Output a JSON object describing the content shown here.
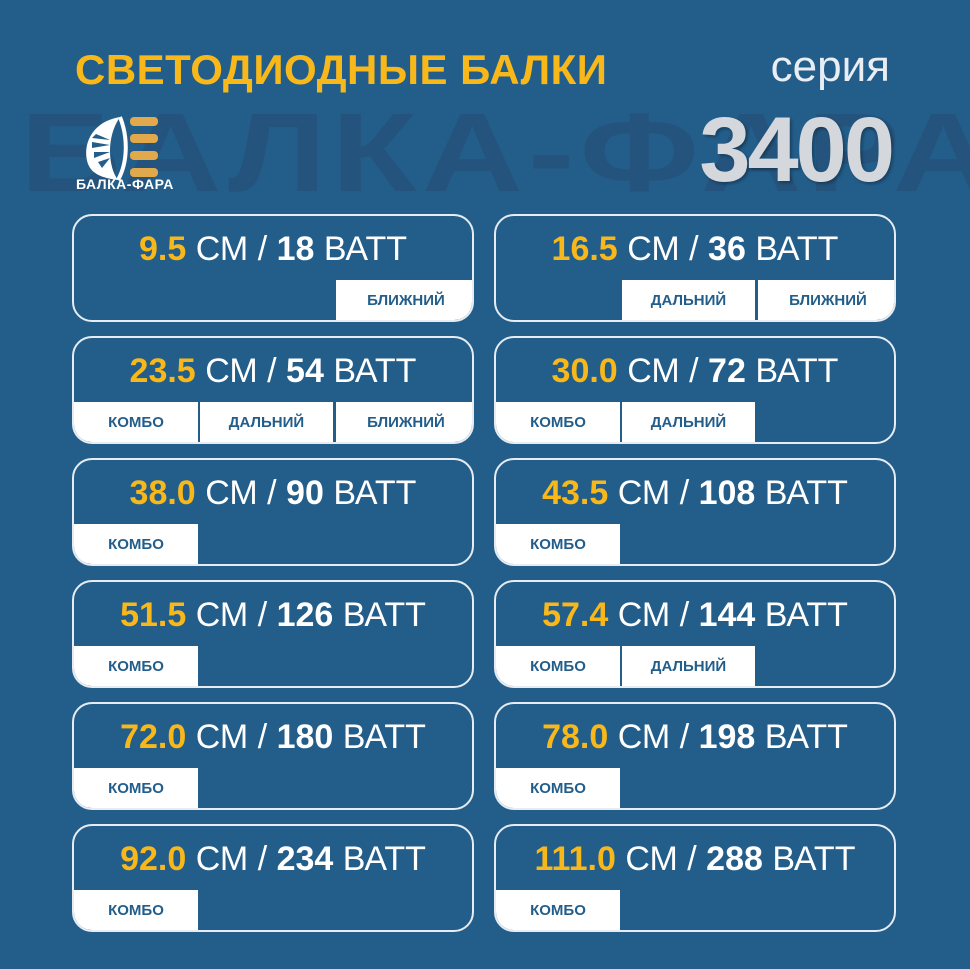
{
  "header": {
    "title": "СВЕТОДИОДНЫЕ БАЛКИ",
    "series_label": "серия",
    "series_number": "3400",
    "logo_text": "БАЛКА-ФАРА",
    "watermark": "БАЛКА-ФАРА"
  },
  "colors": {
    "background": "#235e8b",
    "accent": "#f9b81a",
    "tab": "#ffffff"
  },
  "units": {
    "length": "СМ",
    "sep": "/",
    "power": "ВАТТ"
  },
  "cards": [
    {
      "length": "9.5",
      "watt": "18",
      "tabs": [
        "",
        "",
        "БЛИЖНИЙ"
      ]
    },
    {
      "length": "16.5",
      "watt": "36",
      "tabs": [
        "",
        "ДАЛЬНИЙ",
        "БЛИЖНИЙ"
      ]
    },
    {
      "length": "23.5",
      "watt": "54",
      "tabs": [
        "КОМБО",
        "ДАЛЬНИЙ",
        "БЛИЖНИЙ"
      ]
    },
    {
      "length": "30.0",
      "watt": "72",
      "tabs": [
        "КОМБО",
        "ДАЛЬНИЙ",
        ""
      ]
    },
    {
      "length": "38.0",
      "watt": "90",
      "tabs": [
        "КОМБО",
        "",
        ""
      ]
    },
    {
      "length": "43.5",
      "watt": "108",
      "tabs": [
        "КОМБО",
        "",
        ""
      ]
    },
    {
      "length": "51.5",
      "watt": "126",
      "tabs": [
        "КОМБО",
        "",
        ""
      ]
    },
    {
      "length": "57.4",
      "watt": "144",
      "tabs": [
        "КОМБО",
        "ДАЛЬНИЙ",
        ""
      ]
    },
    {
      "length": "72.0",
      "watt": "180",
      "tabs": [
        "КОМБО",
        "",
        ""
      ]
    },
    {
      "length": "78.0",
      "watt": "198",
      "tabs": [
        "КОМБО",
        "",
        ""
      ]
    },
    {
      "length": "92.0",
      "watt": "234",
      "tabs": [
        "КОМБО",
        "",
        ""
      ]
    },
    {
      "length": "111.0",
      "watt": "288",
      "tabs": [
        "КОМБО",
        "",
        ""
      ]
    }
  ]
}
